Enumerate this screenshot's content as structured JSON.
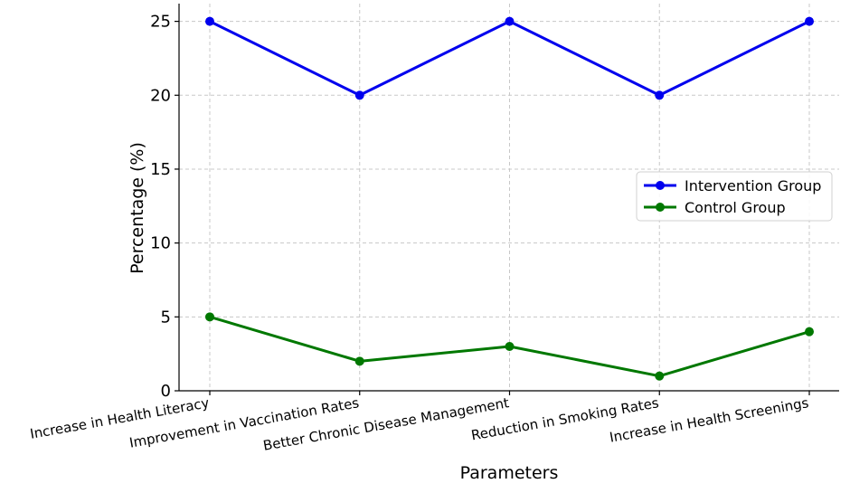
{
  "chart_data": {
    "type": "line",
    "title": "",
    "xlabel": "Parameters",
    "ylabel": "Percentage (%)",
    "categories": [
      "Increase in Health Literacy",
      "Improvement in Vaccination Rates",
      "Better Chronic Disease Management",
      "Reduction in Smoking Rates",
      "Increase in Health Screenings"
    ],
    "series": [
      {
        "name": "Intervention Group",
        "color": "#0000ee",
        "values": [
          25,
          20,
          25,
          20,
          25
        ]
      },
      {
        "name": "Control Group",
        "color": "#007800",
        "values": [
          5,
          2,
          3,
          1,
          4
        ]
      }
    ],
    "ylim": [
      0,
      26.2
    ],
    "yticks": [
      0,
      5,
      10,
      15,
      20,
      25
    ],
    "grid": true,
    "legend_position": "center-right",
    "marker": "circle"
  }
}
